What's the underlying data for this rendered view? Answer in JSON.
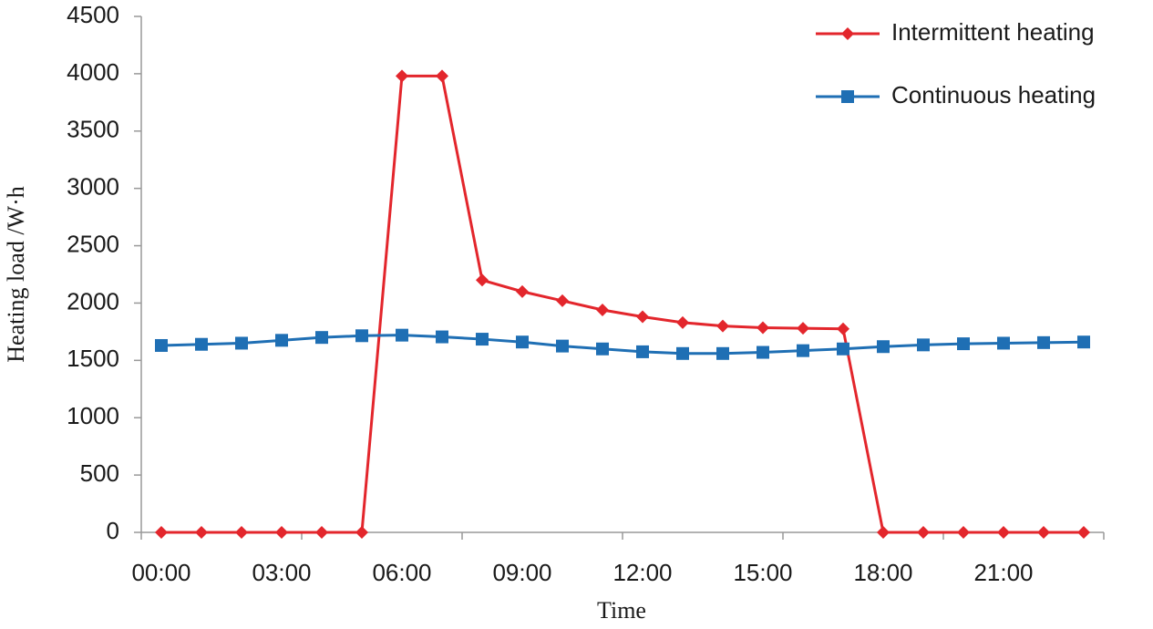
{
  "chart_data": {
    "type": "line",
    "x_label": "Time",
    "y_label": "Heating load /W·h",
    "categories": [
      "00:00",
      null,
      null,
      "03:00",
      null,
      null,
      "06:00",
      null,
      null,
      "09:00",
      null,
      null,
      "12:00",
      null,
      null,
      "15:00",
      null,
      null,
      "18:00",
      null,
      null,
      "21:00",
      null,
      null
    ],
    "series": [
      {
        "name": "Intermittent heating",
        "color": "#e3262c",
        "marker": "diamond",
        "values": [
          0,
          0,
          0,
          0,
          0,
          0,
          3980,
          3980,
          2200,
          2100,
          2020,
          1940,
          1880,
          1830,
          1800,
          1785,
          1780,
          1775,
          0,
          0,
          0,
          0,
          0,
          0
        ]
      },
      {
        "name": "Continuous heating",
        "color": "#1f6fb4",
        "marker": "square",
        "values": [
          1630,
          1640,
          1650,
          1675,
          1700,
          1715,
          1720,
          1705,
          1685,
          1660,
          1625,
          1600,
          1575,
          1560,
          1560,
          1570,
          1585,
          1600,
          1620,
          1635,
          1645,
          1650,
          1655,
          1660
        ]
      }
    ],
    "ylim": [
      0,
      4500
    ],
    "yticks": [
      0,
      500,
      1000,
      1500,
      2000,
      2500,
      3000,
      3500,
      4000,
      4500
    ],
    "legend": "top-right"
  }
}
